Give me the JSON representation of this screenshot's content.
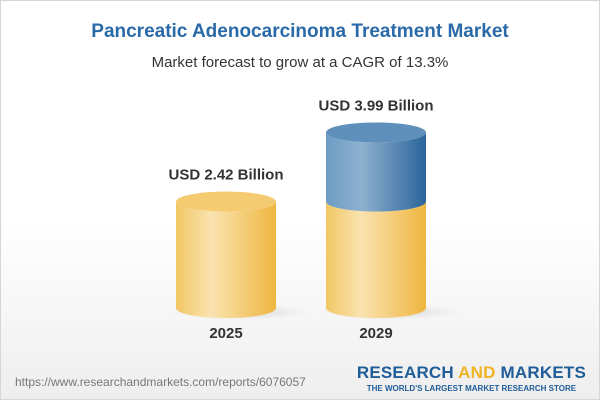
{
  "title": "Pancreatic Adenocarcinoma Treatment Market",
  "subtitle": "Market forecast to grow at a CAGR of 13.3%",
  "chart_data": {
    "type": "bar",
    "style": "3d-cylinder",
    "categories": [
      "2025",
      "2029"
    ],
    "values": [
      2.42,
      3.99
    ],
    "data_labels": [
      "USD 2.42 Billion",
      "USD 3.99 Billion"
    ],
    "unit": "USD Billion",
    "colors": {
      "base": "#f2c35c",
      "growth": "#4a7fb0"
    },
    "grid": false
  },
  "footer": {
    "url": "https://www.researchandmarkets.com/reports/6076057",
    "logo_part1": "RESEARCH ",
    "logo_part2": "AND",
    "logo_part3": " MARKETS",
    "logo_tagline": "THE WORLD'S LARGEST MARKET RESEARCH STORE"
  }
}
